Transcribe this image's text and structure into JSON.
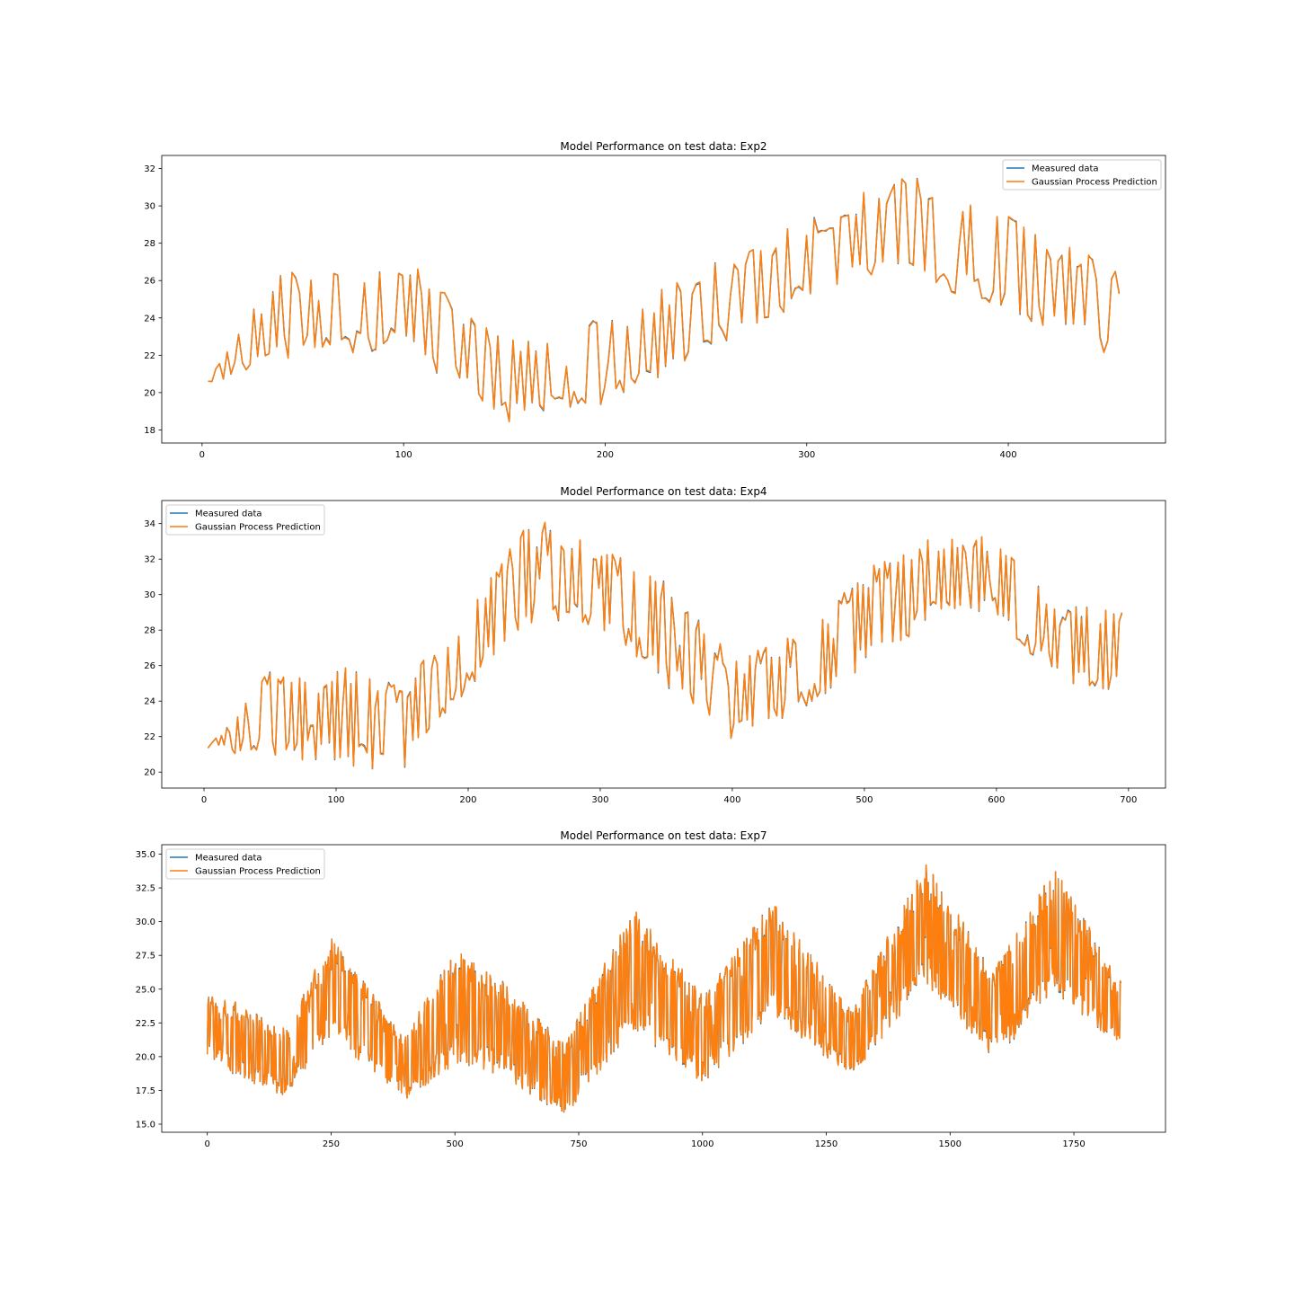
{
  "colors": {
    "measured": "#1f77b4",
    "prediction": "#ff7f0e",
    "axes": "#000000",
    "legend_border": "#cccccc"
  },
  "chart_data": [
    {
      "type": "line",
      "title": "Model Performance on test data: Exp2",
      "xlabel": "",
      "ylabel": "",
      "xlim": [
        -20,
        478
      ],
      "ylim": [
        17.3,
        32.7
      ],
      "xticks": [
        0,
        100,
        200,
        300,
        400
      ],
      "yticks": [
        18,
        20,
        22,
        24,
        26,
        28,
        30,
        32
      ],
      "grid": false,
      "legend": {
        "position": "upper-right",
        "entries": [
          "Measured data",
          "Gaussian Process Prediction"
        ]
      },
      "x_start": 3,
      "x_end": 455,
      "n_points": 240,
      "noise_seed": 11,
      "envelope": {
        "x": [
          3,
          40,
          100,
          150,
          200,
          250,
          300,
          350,
          400,
          455
        ],
        "top": [
          20.7,
          26.9,
          27.2,
          22.8,
          24.0,
          26.8,
          29.3,
          31.8,
          29.6,
          26.5
        ],
        "bottom": [
          20.4,
          21.8,
          22.3,
          18.4,
          19.2,
          22.2,
          24.8,
          26.4,
          24.1,
          21.7
        ]
      },
      "series": [
        {
          "name": "Measured data",
          "role": "measured"
        },
        {
          "name": "Gaussian Process Prediction",
          "role": "prediction"
        }
      ]
    },
    {
      "type": "line",
      "title": "Model Performance on test data: Exp4",
      "xlabel": "",
      "ylabel": "",
      "xlim": [
        -32,
        728
      ],
      "ylim": [
        19.1,
        35.3
      ],
      "xticks": [
        0,
        100,
        200,
        300,
        400,
        500,
        600,
        700
      ],
      "yticks": [
        20,
        22,
        24,
        26,
        28,
        30,
        32,
        34
      ],
      "grid": false,
      "legend": {
        "position": "upper-left",
        "entries": [
          "Measured data",
          "Gaussian Process Prediction"
        ]
      },
      "x_start": 3,
      "x_end": 695,
      "n_points": 340,
      "noise_seed": 23,
      "envelope": {
        "x": [
          3,
          50,
          100,
          150,
          200,
          250,
          300,
          350,
          400,
          450,
          500,
          550,
          600,
          650,
          695
        ],
        "top": [
          21.4,
          25.8,
          26.1,
          24.8,
          29.4,
          34.4,
          33.0,
          31.0,
          26.4,
          27.8,
          31.5,
          33.2,
          33.4,
          29.6,
          29.0
        ],
        "bottom": [
          21.1,
          20.8,
          20.5,
          19.9,
          24.6,
          28.6,
          28.2,
          24.8,
          21.6,
          23.4,
          25.8,
          28.5,
          28.6,
          24.8,
          24.6
        ]
      },
      "series": [
        {
          "name": "Measured data",
          "role": "measured"
        },
        {
          "name": "Gaussian Process Prediction",
          "role": "prediction"
        }
      ]
    },
    {
      "type": "line",
      "title": "Model Performance on test data: Exp7",
      "xlabel": "",
      "ylabel": "",
      "xlim": [
        -92,
        1935
      ],
      "ylim": [
        14.4,
        35.7
      ],
      "xticks": [
        0,
        250,
        500,
        750,
        1000,
        1250,
        1500,
        1750
      ],
      "yticks": [
        15.0,
        17.5,
        20.0,
        22.5,
        25.0,
        27.5,
        30.0,
        32.5,
        35.0
      ],
      "grid": false,
      "legend": {
        "position": "upper-left",
        "entries": [
          "Measured data",
          "Gaussian Process Prediction"
        ]
      },
      "x_start": 0,
      "x_end": 1845,
      "n_points": 1300,
      "noise_seed": 37,
      "envelope": {
        "x": [
          0,
          60,
          160,
          250,
          400,
          500,
          600,
          720,
          860,
          1000,
          1140,
          1300,
          1450,
          1590,
          1710,
          1845
        ],
        "top": [
          24.5,
          24.0,
          22.0,
          29.0,
          21.5,
          28.0,
          25.5,
          21.0,
          31.0,
          24.5,
          31.5,
          23.5,
          34.5,
          26.5,
          34.0,
          25.5
        ],
        "bottom": [
          20.0,
          18.5,
          17.0,
          21.5,
          16.7,
          19.5,
          18.5,
          15.5,
          22.0,
          18.0,
          23.0,
          18.5,
          25.5,
          19.7,
          24.5,
          20.8
        ]
      },
      "series": [
        {
          "name": "Measured data",
          "role": "measured"
        },
        {
          "name": "Gaussian Process Prediction",
          "role": "prediction"
        }
      ]
    }
  ]
}
